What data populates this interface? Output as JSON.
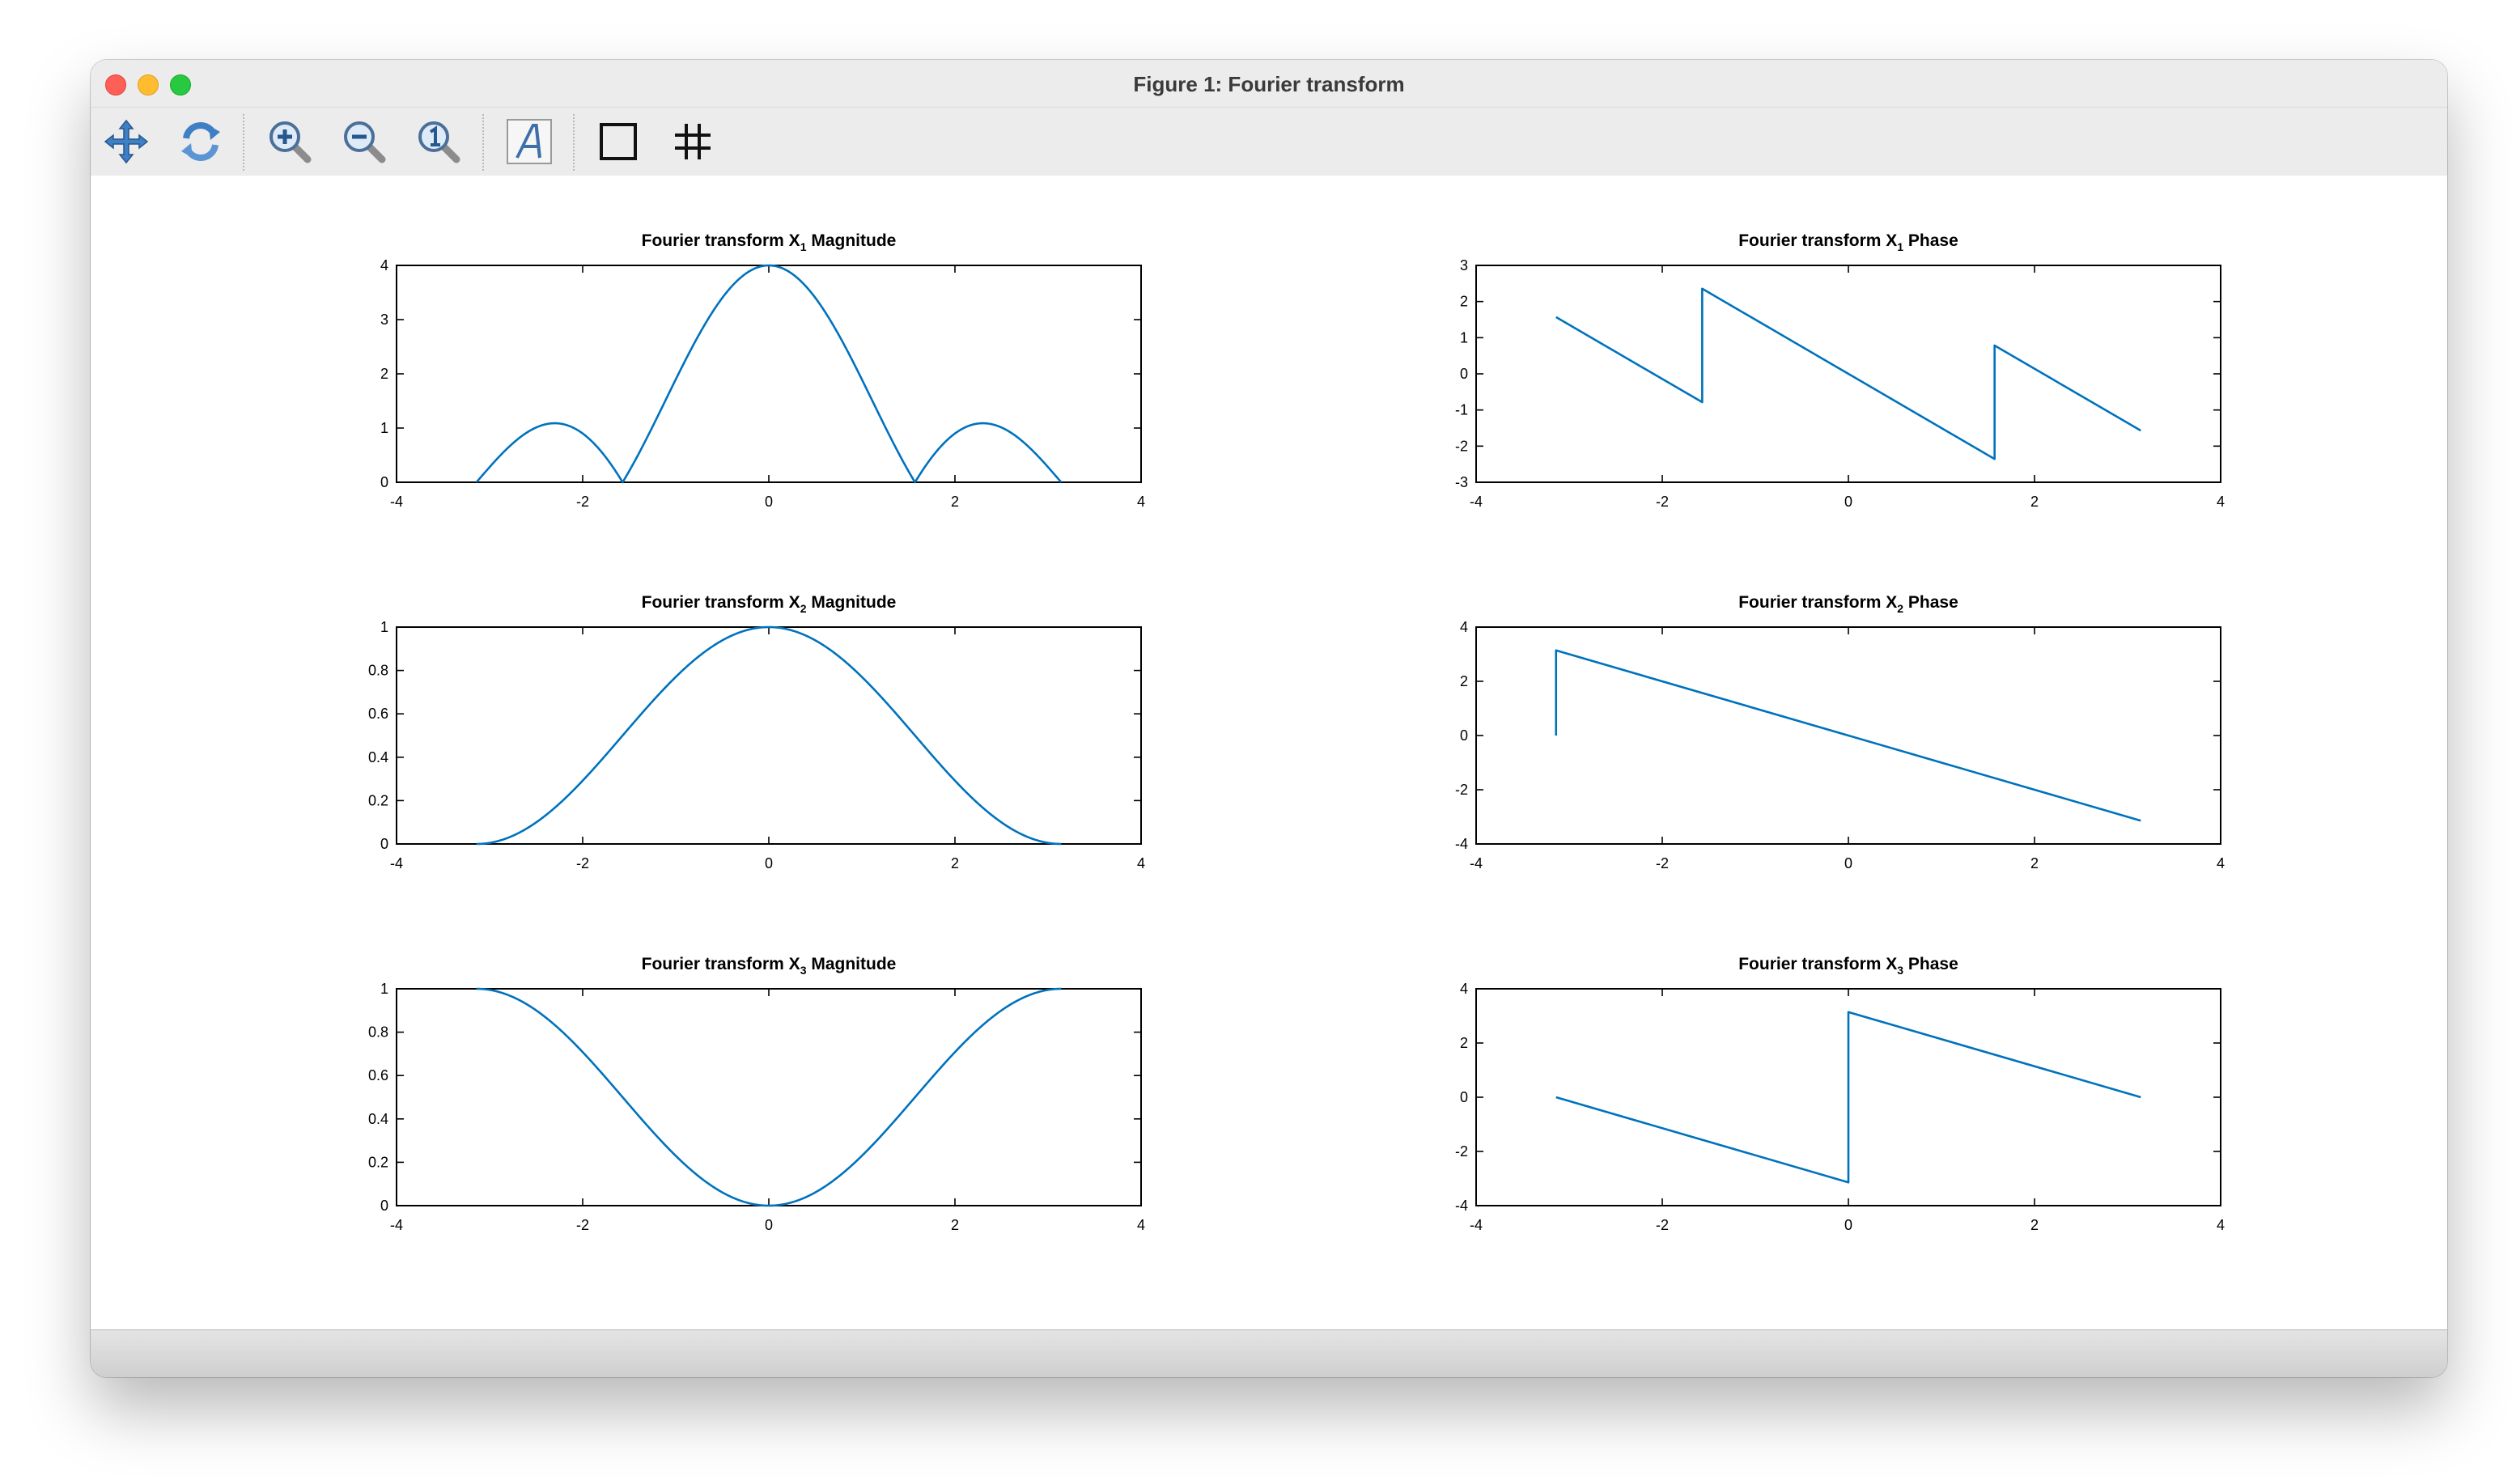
{
  "window": {
    "title": "Figure 1: Fourier transform"
  },
  "toolbar": {
    "buttons": [
      {
        "icon": "pan-icon"
      },
      {
        "icon": "rotate-icon"
      },
      {
        "icon": "zoom-in-icon"
      },
      {
        "icon": "zoom-out-icon"
      },
      {
        "icon": "zoom-reset-icon"
      },
      {
        "icon": "text-insert-icon"
      },
      {
        "icon": "axes-box-icon"
      },
      {
        "icon": "grid-icon"
      }
    ]
  },
  "colors": {
    "line": "#0072bd",
    "background": "#ffffff",
    "toolbar": "#ececec"
  },
  "chart_data": [
    {
      "type": "line",
      "title": {
        "pre": "Fourier transform X",
        "sub": "1",
        "post": " Magnitude"
      },
      "xlim": [
        -4,
        4
      ],
      "ylim": [
        0,
        4
      ],
      "xticks": [
        "-4",
        "-2",
        "0",
        "2",
        "4"
      ],
      "yticks": [
        "0",
        "1",
        "2",
        "3",
        "4"
      ],
      "series": [
        {
          "function": "|sin(2w)/sin(w/2)|",
          "x_range": [
            -3.1416,
            3.1416
          ],
          "peak": 4,
          "minor_peaks": [
            [
              -2.3,
              1.1
            ],
            [
              2.3,
              1.1
            ]
          ]
        }
      ]
    },
    {
      "type": "line",
      "title": {
        "pre": "Fourier transform X",
        "sub": "1",
        "post": " Phase"
      },
      "xlim": [
        -4,
        4
      ],
      "ylim": [
        -3,
        3
      ],
      "xticks": [
        "-4",
        "-2",
        "0",
        "2",
        "4"
      ],
      "yticks": [
        "-3",
        "-2",
        "-1",
        "0",
        "1",
        "2",
        "3"
      ],
      "series": [
        {
          "x": [
            -3.1416,
            -1.5708,
            -1.5708,
            1.5708,
            1.5708,
            3.1416
          ],
          "y": [
            1.57,
            -0.785,
            2.356,
            -2.356,
            0.785,
            -1.57
          ]
        }
      ]
    },
    {
      "type": "line",
      "title": {
        "pre": "Fourier transform X",
        "sub": "2",
        "post": " Magnitude"
      },
      "xlim": [
        -4,
        4
      ],
      "ylim": [
        0,
        1
      ],
      "xticks": [
        "-4",
        "-2",
        "0",
        "2",
        "4"
      ],
      "yticks": [
        "0",
        "0.2",
        "0.4",
        "0.6",
        "0.8",
        "1"
      ],
      "series": [
        {
          "function": "cos^2(w/2)",
          "x_range": [
            -3.1416,
            3.1416
          ],
          "peak": 1
        }
      ]
    },
    {
      "type": "line",
      "title": {
        "pre": "Fourier transform X",
        "sub": "2",
        "post": " Phase"
      },
      "xlim": [
        -4,
        4
      ],
      "ylim": [
        -4,
        4
      ],
      "xticks": [
        "-4",
        "-2",
        "0",
        "2",
        "4"
      ],
      "yticks": [
        "-4",
        "-2",
        "0",
        "2",
        "4"
      ],
      "series": [
        {
          "x": [
            -3.1416,
            -3.1416,
            3.1416
          ],
          "y": [
            0,
            3.1416,
            -3.1416
          ]
        }
      ]
    },
    {
      "type": "line",
      "title": {
        "pre": "Fourier transform X",
        "sub": "3",
        "post": " Magnitude"
      },
      "xlim": [
        -4,
        4
      ],
      "ylim": [
        0,
        1
      ],
      "xticks": [
        "-4",
        "-2",
        "0",
        "2",
        "4"
      ],
      "yticks": [
        "0",
        "0.2",
        "0.4",
        "0.6",
        "0.8",
        "1"
      ],
      "series": [
        {
          "function": "sin^2(w/2)",
          "x_range": [
            -3.1416,
            3.1416
          ],
          "peak": 1
        }
      ]
    },
    {
      "type": "line",
      "title": {
        "pre": "Fourier transform X",
        "sub": "3",
        "post": " Phase"
      },
      "xlim": [
        -4,
        4
      ],
      "ylim": [
        -4,
        4
      ],
      "xticks": [
        "-4",
        "-2",
        "0",
        "2",
        "4"
      ],
      "yticks": [
        "-4",
        "-2",
        "0",
        "2",
        "4"
      ],
      "series": [
        {
          "x": [
            -3.1416,
            0,
            0,
            3.1416
          ],
          "y": [
            0,
            -3.1416,
            3.1416,
            0
          ]
        }
      ]
    }
  ]
}
